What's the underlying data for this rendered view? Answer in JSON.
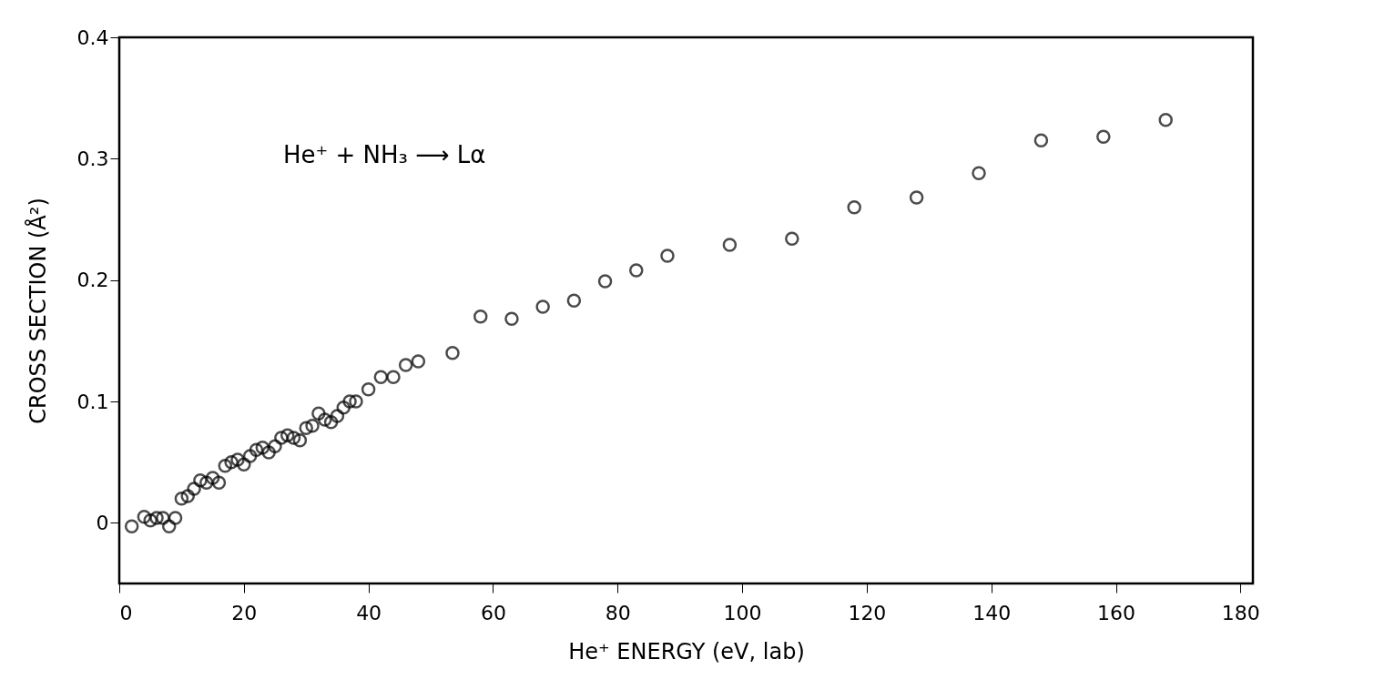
{
  "chart_data": {
    "type": "scatter",
    "xlabel": "He⁺ ENERGY (eV, lab)",
    "ylabel": "CROSS SECTION (Å²)",
    "annotations": [
      "He⁺ + NH₃ ⟶ Lα"
    ],
    "xlim": [
      0,
      182
    ],
    "xticks": [
      0,
      20,
      40,
      60,
      80,
      100,
      120,
      140,
      160,
      180
    ],
    "ylim": [
      -0.05,
      0.4
    ],
    "yticks": [
      {
        "value": 0,
        "label": "0"
      },
      0.1,
      0.2,
      0.3,
      0.4
    ],
    "grid": false,
    "marker": "circle",
    "series": [
      {
        "color": "#000000",
        "x": [
          2,
          4,
          5,
          6,
          7,
          8,
          9,
          10,
          11,
          12,
          13,
          14,
          15,
          16,
          17,
          18,
          19,
          20,
          21,
          22,
          23,
          24,
          25,
          26,
          27,
          28,
          29,
          30,
          31,
          32,
          33,
          34,
          35,
          36,
          37,
          38,
          40,
          42,
          44,
          46,
          48,
          53.5,
          58,
          63,
          68,
          73,
          78,
          83,
          88,
          98,
          108,
          118,
          128,
          138,
          148,
          158,
          168
        ],
        "values": [
          -0.003,
          0.005,
          0.002,
          0.004,
          0.004,
          -0.003,
          0.004,
          0.02,
          0.022,
          0.028,
          0.035,
          0.033,
          0.037,
          0.033,
          0.047,
          0.05,
          0.052,
          0.048,
          0.055,
          0.06,
          0.062,
          0.058,
          0.063,
          0.07,
          0.072,
          0.07,
          0.068,
          0.078,
          0.08,
          0.09,
          0.085,
          0.083,
          0.088,
          0.095,
          0.1,
          0.1,
          0.11,
          0.12,
          0.12,
          0.13,
          0.133,
          0.14,
          0.17,
          0.168,
          0.178,
          0.183,
          0.199,
          0.208,
          0.22,
          0.229,
          0.234,
          0.26,
          0.268,
          0.288,
          0.315,
          0.318,
          0.332
        ]
      }
    ]
  }
}
